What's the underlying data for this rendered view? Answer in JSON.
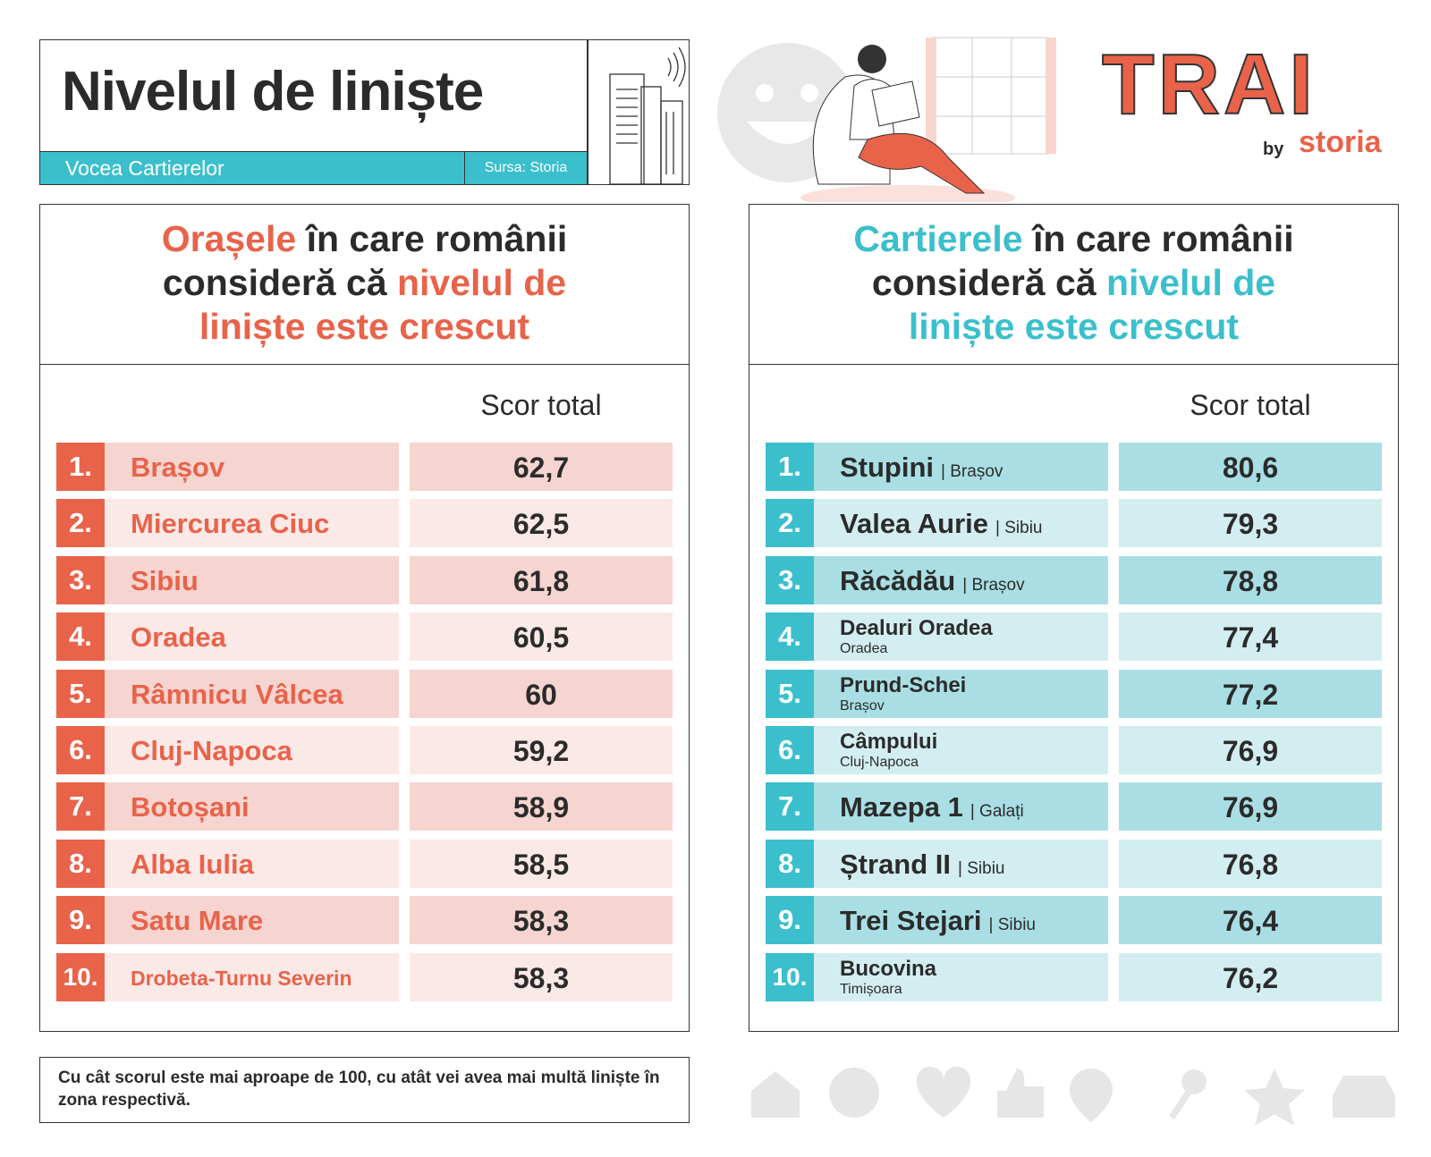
{
  "header": {
    "title": "Nivelul de liniște",
    "subtitle": "Vocea Cartierelor",
    "source": "Sursa: Storia"
  },
  "brand": {
    "logo": "TRAI",
    "by": "by",
    "name": "storia"
  },
  "left": {
    "heading": [
      {
        "text": "Orașele",
        "accent": true
      },
      {
        "text": " în care românii consideră că "
      },
      {
        "text": "nivelul de liniște este crescut",
        "accent": true
      }
    ],
    "score_header": "Scor total",
    "rows": [
      {
        "rank": "1.",
        "name": "Brașov",
        "score": "62,7"
      },
      {
        "rank": "2.",
        "name": "Miercurea Ciuc",
        "score": "62,5"
      },
      {
        "rank": "3.",
        "name": "Sibiu",
        "score": "61,8"
      },
      {
        "rank": "4.",
        "name": "Oradea",
        "score": "60,5"
      },
      {
        "rank": "5.",
        "name": "Râmnicu Vâlcea",
        "score": "60"
      },
      {
        "rank": "6.",
        "name": "Cluj-Napoca",
        "score": "59,2"
      },
      {
        "rank": "7.",
        "name": "Botoșani",
        "score": "58,9"
      },
      {
        "rank": "8.",
        "name": "Alba Iulia",
        "score": "58,5"
      },
      {
        "rank": "9.",
        "name": "Satu Mare",
        "score": "58,3"
      },
      {
        "rank": "10.",
        "name": "Drobeta-Turnu Severin",
        "score": "58,3"
      }
    ]
  },
  "right": {
    "heading": [
      {
        "text": "Cartierele",
        "accent": true
      },
      {
        "text": " în care românii consideră că "
      },
      {
        "text": "nivelul de liniște este crescut",
        "accent": true
      }
    ],
    "score_header": "Scor total",
    "rows": [
      {
        "rank": "1.",
        "name": "Stupini",
        "tag": "| Brașov",
        "score": "80,6"
      },
      {
        "rank": "2.",
        "name": "Valea Aurie",
        "tag": "| Sibiu",
        "score": "79,3"
      },
      {
        "rank": "3.",
        "name": "Răcădău",
        "tag": "| Brașov",
        "score": "78,8"
      },
      {
        "rank": "4.",
        "name": "Dealuri Oradea",
        "city": "Oradea",
        "score": "77,4"
      },
      {
        "rank": "5.",
        "name": "Prund-Schei",
        "city": "Brașov",
        "score": "77,2"
      },
      {
        "rank": "6.",
        "name": "Câmpului",
        "city": "Cluj-Napoca",
        "score": "76,9"
      },
      {
        "rank": "7.",
        "name": "Mazepa 1",
        "tag": "| Galați",
        "score": "76,9"
      },
      {
        "rank": "8.",
        "name": "Ștrand II",
        "tag": "| Sibiu",
        "score": "76,8"
      },
      {
        "rank": "9.",
        "name": "Trei Stejari",
        "tag": "| Sibiu",
        "score": "76,4"
      },
      {
        "rank": "10.",
        "name": "Bucovina",
        "city": "Timișoara",
        "score": "76,2"
      }
    ]
  },
  "footer": {
    "note": "Cu cât scorul este mai aproape de 100, cu atât vei avea mai multă liniște în zona respectivă."
  }
}
